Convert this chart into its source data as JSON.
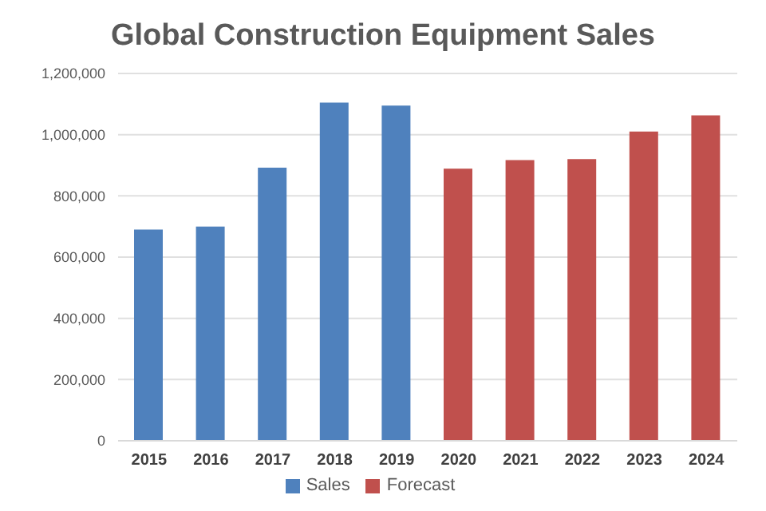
{
  "chart_data": {
    "type": "bar",
    "title": "Global Construction Equipment Sales",
    "categories": [
      "2015",
      "2016",
      "2017",
      "2018",
      "2019",
      "2020",
      "2021",
      "2022",
      "2023",
      "2024"
    ],
    "series": [
      {
        "name": "Sales",
        "color": "#4f81bd",
        "values": [
          690000,
          700000,
          892000,
          1105000,
          1095000,
          null,
          null,
          null,
          null,
          null
        ]
      },
      {
        "name": "Forecast",
        "color": "#c0504d",
        "values": [
          null,
          null,
          null,
          null,
          null,
          889000,
          917000,
          920000,
          1010000,
          1063000
        ]
      }
    ],
    "ylim": [
      0,
      1200000
    ],
    "yticks": [
      {
        "value": 0,
        "label": "0"
      },
      {
        "value": 200000,
        "label": "200,000"
      },
      {
        "value": 400000,
        "label": "400,000"
      },
      {
        "value": 600000,
        "label": "600,000"
      },
      {
        "value": 800000,
        "label": "800,000"
      },
      {
        "value": 1000000,
        "label": "1,000,000"
      },
      {
        "value": 1200000,
        "label": "1,200,000"
      }
    ],
    "grid": "y",
    "legend": "bottom"
  }
}
